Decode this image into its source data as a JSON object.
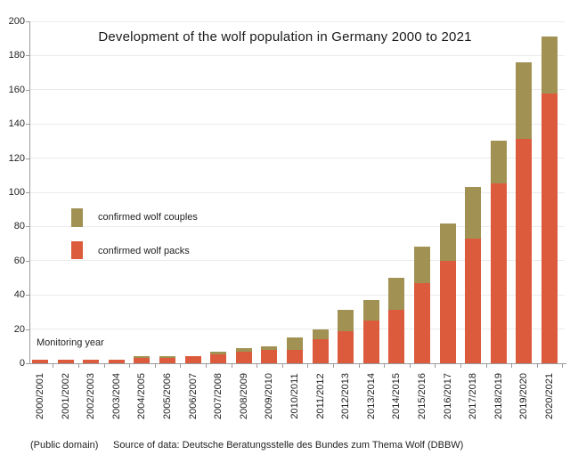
{
  "footer": {
    "license": "(Public domain)",
    "source": "Source of data: Deutsche Beratungsstelle des Bundes zum Thema Wolf (DBBW)"
  },
  "colors": {
    "packs": "#DC5B3C",
    "couples": "#A19254",
    "axis": "#9b9b9b",
    "gridline": "#ebebeb"
  },
  "chart_data": {
    "type": "bar",
    "stacked": true,
    "title": "Development of the wolf population in Germany 2000 to 2021",
    "xlabel": "Monitoring year",
    "ylabel": "",
    "ylim": [
      0,
      200
    ],
    "ytick_step": 20,
    "grid": true,
    "legend_position": "inside-left",
    "categories": [
      "2000/2001",
      "2001/2002",
      "2002/2003",
      "2003/2004",
      "2004/2005",
      "2005/2006",
      "2006/2007",
      "2007/2008",
      "2008/2009",
      "2009/2010",
      "2010/2011",
      "2011/2012",
      "2012/2013",
      "2013/2014",
      "2014/2015",
      "2015/2016",
      "2016/2017",
      "2017/2018",
      "2018/2019",
      "2019/2020",
      "2020/2021"
    ],
    "series": [
      {
        "name": "confirmed wolf packs",
        "color": "#DC5B3C",
        "values": [
          2,
          2,
          2,
          2,
          3,
          3,
          4,
          5,
          7,
          8,
          8,
          14,
          19,
          25,
          31,
          47,
          60,
          73,
          105,
          131,
          158
        ]
      },
      {
        "name": "confirmed wolf couples",
        "color": "#A19254",
        "values": [
          0,
          0,
          0,
          0,
          1,
          1,
          0,
          2,
          2,
          2,
          7,
          6,
          12,
          12,
          19,
          21,
          22,
          30,
          25,
          45,
          33
        ]
      }
    ],
    "legend": [
      {
        "label": "confirmed wolf couples",
        "color": "#A19254"
      },
      {
        "label": "confirmed wolf packs",
        "color": "#DC5B3C"
      }
    ]
  }
}
